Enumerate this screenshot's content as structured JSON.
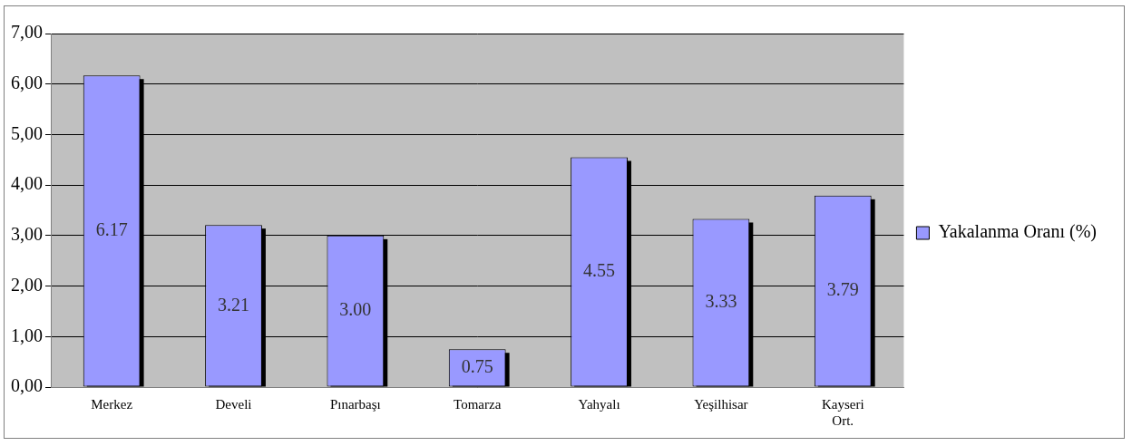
{
  "chart_data": {
    "type": "bar",
    "categories": [
      "Merkez",
      "Develi",
      "Pınarbaşı",
      "Tomarza",
      "Yahyalı",
      "Yeşilhisar",
      "Kayseri Ort."
    ],
    "series": [
      {
        "name": "Yakalanma Oranı (%)",
        "color": "#9999ff",
        "values": [
          6.17,
          3.21,
          3.0,
          0.75,
          4.55,
          3.33,
          3.79
        ],
        "value_labels": [
          "6.17",
          "3.21",
          "3.00",
          "0.75",
          "4.55",
          "3.33",
          "3.79"
        ]
      }
    ],
    "ylim": [
      0,
      7
    ],
    "yticks": [
      {
        "value": 0,
        "label": "0,00"
      },
      {
        "value": 1,
        "label": "1,00"
      },
      {
        "value": 2,
        "label": "2,00"
      },
      {
        "value": 3,
        "label": "3,00"
      },
      {
        "value": 4,
        "label": "4,00"
      },
      {
        "value": 5,
        "label": "5,00"
      },
      {
        "value": 6,
        "label": "6,00"
      },
      {
        "value": 7,
        "label": "7,00"
      }
    ],
    "grid": true,
    "legend": "right",
    "data_labels": true
  }
}
